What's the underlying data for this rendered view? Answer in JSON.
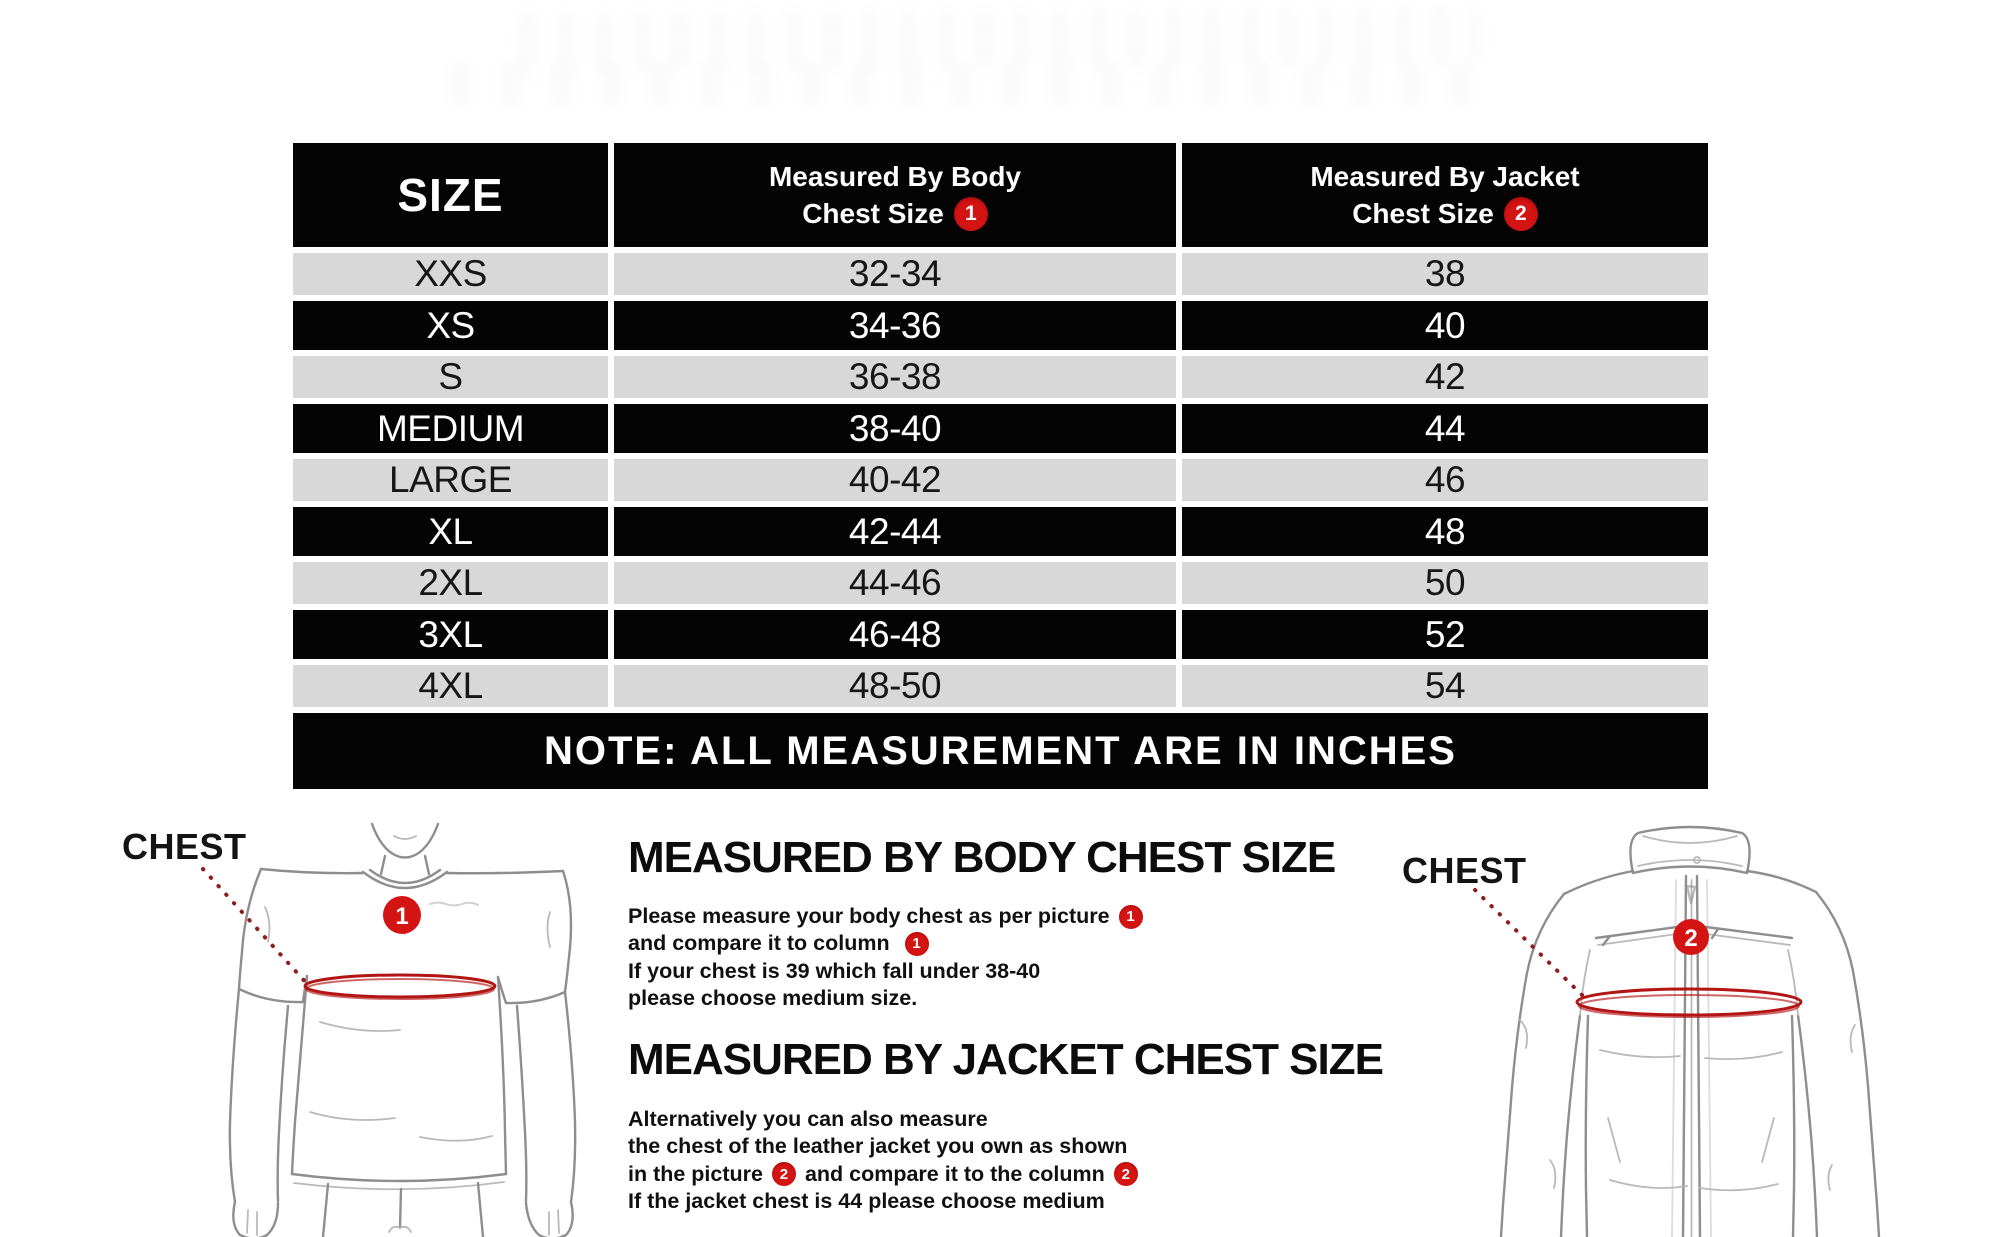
{
  "table": {
    "header": {
      "size_label": "SIZE",
      "col_body": {
        "line1": "Measured By Body",
        "line2": "Chest Size",
        "badge": "1"
      },
      "col_jacket": {
        "line1": "Measured By Jacket",
        "line2": "Chest Size",
        "badge": "2"
      }
    },
    "rows": [
      {
        "size": "XXS",
        "body": "32-34",
        "jacket": "38",
        "tone": "light"
      },
      {
        "size": "XS",
        "body": "34-36",
        "jacket": "40",
        "tone": "dark"
      },
      {
        "size": "S",
        "body": "36-38",
        "jacket": "42",
        "tone": "light"
      },
      {
        "size": "MEDIUM",
        "body": "38-40",
        "jacket": "44",
        "tone": "dark"
      },
      {
        "size": "LARGE",
        "body": "40-42",
        "jacket": "46",
        "tone": "light"
      },
      {
        "size": "XL",
        "body": "42-44",
        "jacket": "48",
        "tone": "dark"
      },
      {
        "size": "2XL",
        "body": "44-46",
        "jacket": "50",
        "tone": "light"
      },
      {
        "size": "3XL",
        "body": "46-48",
        "jacket": "52",
        "tone": "dark"
      },
      {
        "size": "4XL",
        "body": "48-50",
        "jacket": "54",
        "tone": "light"
      }
    ],
    "note": "NOTE: ALL MEASUREMENT ARE IN INCHES"
  },
  "chart_data": {
    "type": "table",
    "title": "Jacket size chart",
    "columns": [
      "SIZE",
      "Measured By Body Chest Size (1)",
      "Measured By Jacket Chest Size (2)"
    ],
    "rows": [
      [
        "XXS",
        "32-34",
        "38"
      ],
      [
        "XS",
        "34-36",
        "40"
      ],
      [
        "S",
        "36-38",
        "42"
      ],
      [
        "MEDIUM",
        "38-40",
        "44"
      ],
      [
        "LARGE",
        "40-42",
        "46"
      ],
      [
        "XL",
        "42-44",
        "48"
      ],
      [
        "2XL",
        "44-46",
        "50"
      ],
      [
        "3XL",
        "46-48",
        "52"
      ],
      [
        "4XL",
        "48-50",
        "54"
      ]
    ],
    "note": "NOTE: ALL MEASUREMENT ARE IN INCHES",
    "units": "inches"
  },
  "sections": {
    "body": {
      "heading": "MEASURED BY BODY CHEST SIZE",
      "lines": [
        [
          {
            "text": "Please measure your body chest as per picture "
          },
          {
            "badge": "1"
          }
        ],
        [
          {
            "text": "and compare it to column  "
          },
          {
            "badge": "1"
          }
        ],
        [
          {
            "text": "If your chest is 39 which fall under 38-40"
          }
        ],
        [
          {
            "text": "please choose medium size."
          }
        ]
      ]
    },
    "jacket": {
      "heading": "MEASURED BY JACKET CHEST SIZE",
      "lines": [
        [
          {
            "text": "Alternatively you can also measure"
          }
        ],
        [
          {
            "text": "the chest of the leather jacket you own as shown"
          }
        ],
        [
          {
            "text": "in the picture "
          },
          {
            "badge": "2"
          },
          {
            "text": " and compare it to the column "
          },
          {
            "badge": "2"
          }
        ],
        [
          {
            "text": "If the jacket chest is 44 please choose medium"
          }
        ]
      ]
    }
  },
  "figures": {
    "body": {
      "label": "CHEST",
      "badge": "1"
    },
    "jacket": {
      "label": "CHEST",
      "badge": "2"
    }
  },
  "colors": {
    "row_dark": "#040404",
    "row_light": "#d8d8d8",
    "badge_red": "#d41313",
    "measure_red": "#b31414"
  }
}
